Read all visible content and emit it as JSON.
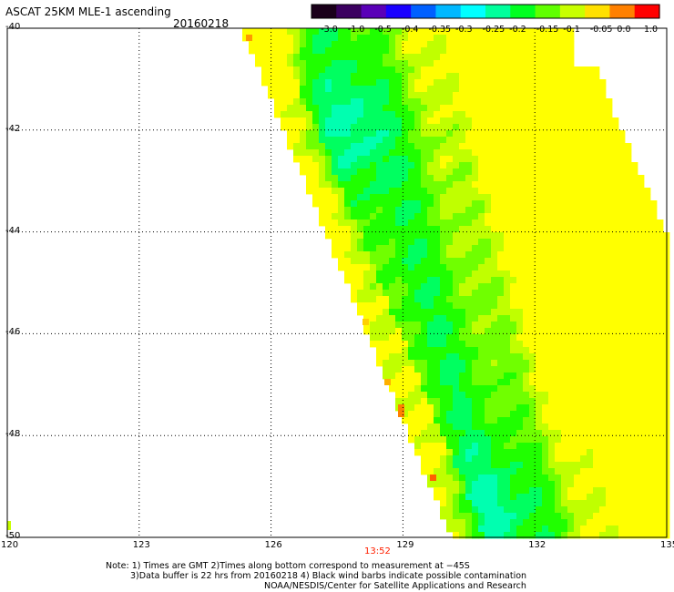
{
  "header": {
    "title": "ASCAT 25KM MLE-1 ascending",
    "date": "20160218"
  },
  "colorbar": {
    "labels": [
      "-3.0",
      "-1.0",
      "-0.5",
      "-0.4",
      "-0.35",
      "-0.3",
      "-0.25",
      "-0.2",
      "-0.15",
      "-0.1",
      "-0.05",
      "0.0",
      "1.0"
    ],
    "colors": [
      "#1a001a",
      "#3b0060",
      "#5a00b8",
      "#1a00ff",
      "#0060ff",
      "#00b8ff",
      "#00ffff",
      "#00ff9c",
      "#00ff20",
      "#60ff00",
      "#c8ff00",
      "#ffe000",
      "#ff8000",
      "#ff0000"
    ]
  },
  "map": {
    "lon_range": [
      120,
      135
    ],
    "lat_range": [
      -40,
      -50
    ],
    "x_ticks": [
      "120",
      "123",
      "126",
      "129",
      "132",
      "135"
    ],
    "y_ticks": [
      "-40",
      "-42",
      "-44",
      "-46",
      "-48",
      "-50"
    ],
    "grid": "dotted",
    "swath_time": "13:52"
  },
  "notes": {
    "line1": "Note: 1) Times are GMT 2)Times along bottom correspond to measurement at −45S",
    "line2": "3)Data buffer is 22 hrs from 20160218 4) Black wind barbs indicate possible contamination",
    "line3": "NOAA/NESDIS/Center for Satellite Applications and Research"
  }
}
